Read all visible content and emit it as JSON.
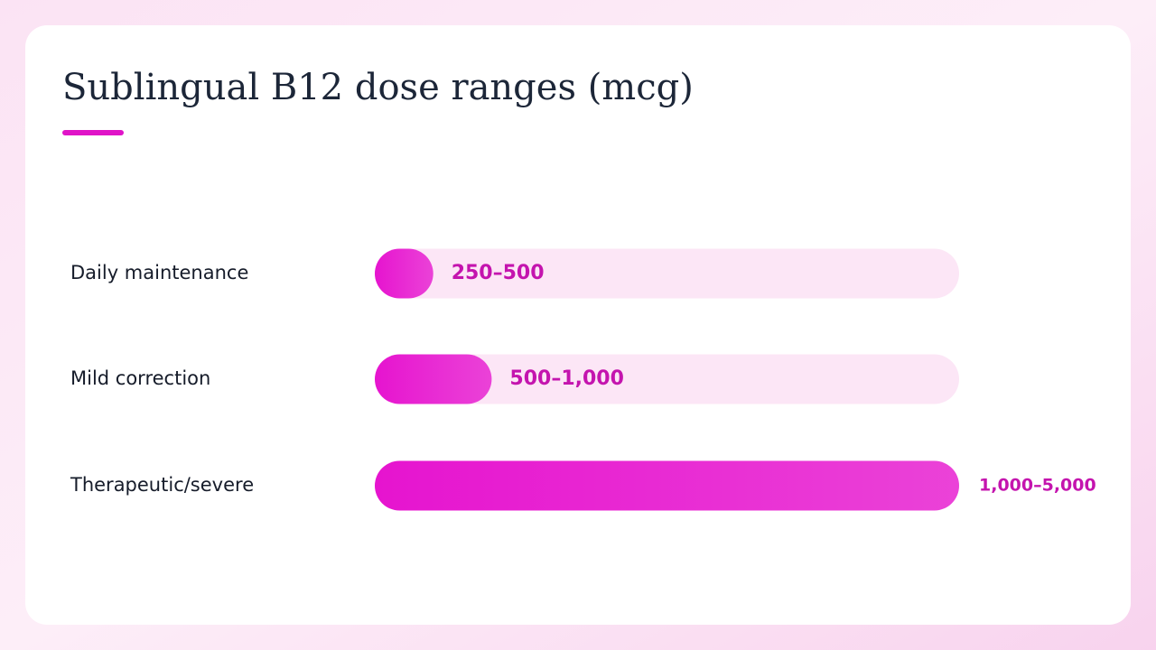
{
  "chart_data": {
    "type": "bar",
    "orientation": "horizontal",
    "title": "Sublingual B12 dose ranges (mcg)",
    "categories": [
      "Daily maintenance",
      "Mild correction",
      "Therapeutic/severe"
    ],
    "values": [
      500,
      1000,
      5000
    ],
    "value_labels": [
      "250–500",
      "500–1,000",
      "1,000–5,000"
    ],
    "color": "#e614cf",
    "xlim": [
      0,
      5000
    ]
  }
}
